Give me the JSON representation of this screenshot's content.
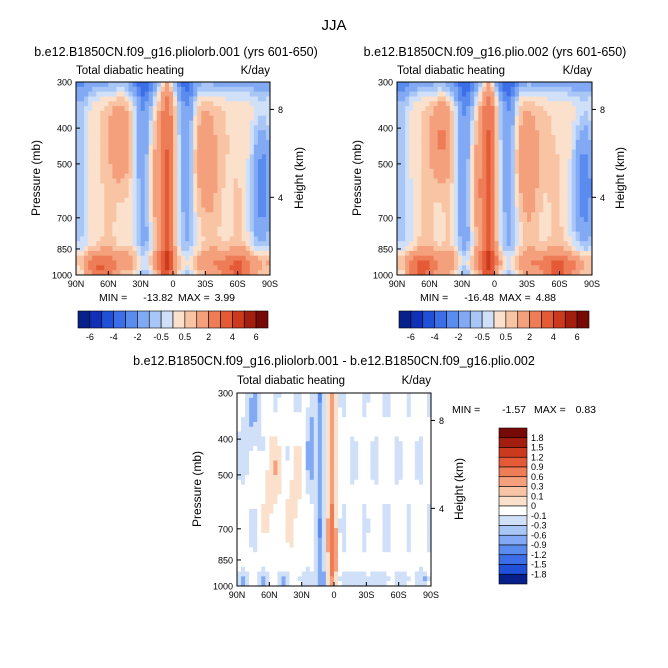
{
  "figure": {
    "title": "JJA"
  },
  "chart_data": [
    {
      "type": "heatmap",
      "title": "b.e12.B1850CN.f09_g16.pliolorb.001 (yrs 601-650)",
      "subtitle_left": "Total diabatic heating",
      "subtitle_right": "K/day",
      "ylabel": "Pressure (mb)",
      "ylabel_right": "Height (km)",
      "x_ticks": [
        "90N",
        "60N",
        "30N",
        "0",
        "30S",
        "60S",
        "90S"
      ],
      "y_ticks": [
        "300",
        "400",
        "500",
        "700",
        "850",
        "1000"
      ],
      "y_ticks_right": [
        "8",
        "4"
      ],
      "min_label": "MIN =",
      "min_value": "-13.82",
      "max_label": "MAX =",
      "max_value": "3.99",
      "colorbar_labels": [
        "-6",
        "-4",
        "-2",
        "-0.5",
        "0.5",
        "2",
        "4",
        "6"
      ]
    },
    {
      "type": "heatmap",
      "title": "b.e12.B1850CN.f09_g16.plio.002 (yrs 601-650)",
      "subtitle_left": "Total diabatic heating",
      "subtitle_right": "K/day",
      "ylabel": "Pressure (mb)",
      "ylabel_right": "Height (km)",
      "x_ticks": [
        "90N",
        "60N",
        "30N",
        "0",
        "30S",
        "60S",
        "90S"
      ],
      "y_ticks": [
        "300",
        "400",
        "500",
        "700",
        "850",
        "1000"
      ],
      "y_ticks_right": [
        "8",
        "4"
      ],
      "min_label": "MIN =",
      "min_value": "-16.48",
      "max_label": "MAX =",
      "max_value": "4.88",
      "colorbar_labels": [
        "-6",
        "-4",
        "-2",
        "-0.5",
        "0.5",
        "2",
        "4",
        "6"
      ]
    },
    {
      "type": "heatmap",
      "title": "b.e12.B1850CN.f09_g16.pliolorb.001 - b.e12.B1850CN.f09_g16.plio.002",
      "subtitle_left": "Total diabatic heating",
      "subtitle_right": "K/day",
      "ylabel": "Pressure (mb)",
      "ylabel_right": "Height (km)",
      "x_ticks": [
        "90N",
        "60N",
        "30N",
        "0",
        "30S",
        "60S",
        "90S"
      ],
      "y_ticks": [
        "300",
        "400",
        "500",
        "700",
        "850",
        "1000"
      ],
      "y_ticks_right": [
        "8",
        "4"
      ],
      "min_label": "MIN =",
      "min_value": "-1.57",
      "max_label": "MAX =",
      "max_value": "0.83",
      "colorbar_labels": [
        "1.8",
        "1.5",
        "1.2",
        "0.9",
        "0.6",
        "0.3",
        "0.1",
        "0",
        "-0.1",
        "-0.3",
        "-0.6",
        "-0.9",
        "-1.2",
        "-1.5",
        "-1.8"
      ]
    }
  ],
  "colors": {
    "diverging": [
      "#08208a",
      "#1030b8",
      "#2050d8",
      "#3c6ee8",
      "#5a8cf0",
      "#82aaf4",
      "#a8c6f6",
      "#d0e0f8",
      "#fbe0cc",
      "#f8c4a4",
      "#f4a07c",
      "#ee7c56",
      "#e45a36",
      "#cc3a1e",
      "#a41e10",
      "#780a06"
    ],
    "diff_scale": [
      "#780a06",
      "#a41e10",
      "#cc3a1e",
      "#e45a36",
      "#ee7c56",
      "#f4a07c",
      "#f8c4a4",
      "#fbe0cc",
      "#ffffff",
      "#d0e0f8",
      "#a8c6f6",
      "#82aaf4",
      "#5a8cf0",
      "#3c6ee8",
      "#2050d8",
      "#08208a"
    ]
  }
}
